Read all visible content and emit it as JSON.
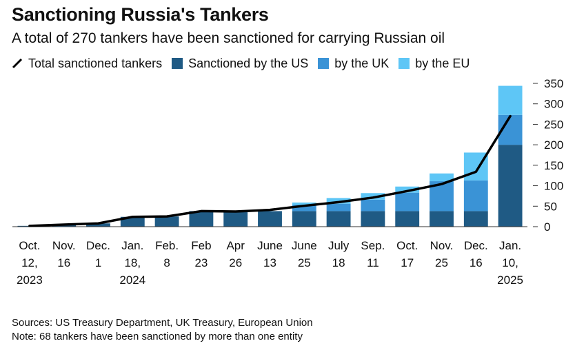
{
  "header": {
    "title": "Sanctioning Russia's Tankers",
    "subtitle": "A total of 270 tankers have been sanctioned for carrying Russian oil"
  },
  "legend": {
    "total": "Total sanctioned tankers",
    "us": "Sanctioned by the US",
    "uk": "by the UK",
    "eu": "by the EU"
  },
  "colors": {
    "us": "#1f5a84",
    "uk": "#3a93d6",
    "eu": "#5ec6f6",
    "line": "#000000",
    "axis": "#333333"
  },
  "chart_data": {
    "type": "bar",
    "stacked": true,
    "title": "Sanctioning Russia's Tankers",
    "categories": [
      [
        "Oct.",
        "12,",
        "2023"
      ],
      [
        "Nov.",
        "16"
      ],
      [
        "Dec.",
        "1"
      ],
      [
        "Jan.",
        "18,",
        "2024"
      ],
      [
        "Feb.",
        "8"
      ],
      [
        "Feb",
        "23"
      ],
      [
        "Apr",
        "26"
      ],
      [
        "June",
        "13"
      ],
      [
        "June",
        "25"
      ],
      [
        "July",
        "18"
      ],
      [
        "Sep.",
        "11"
      ],
      [
        "Oct.",
        "17"
      ],
      [
        "Nov.",
        "25"
      ],
      [
        "Dec.",
        "16"
      ],
      [
        "Jan.",
        "10,",
        "2025"
      ]
    ],
    "series": [
      {
        "name": "Sanctioned by the US",
        "values": [
          2,
          5,
          8,
          24,
          25,
          38,
          38,
          38,
          38,
          38,
          38,
          38,
          38,
          38,
          200
        ]
      },
      {
        "name": "by the UK",
        "values": [
          0,
          0,
          0,
          0,
          0,
          0,
          0,
          0,
          15,
          18,
          28,
          45,
          73,
          75,
          73
        ]
      },
      {
        "name": "by the EU",
        "values": [
          0,
          0,
          0,
          0,
          0,
          0,
          0,
          0,
          6,
          14,
          16,
          15,
          19,
          68,
          71
        ]
      }
    ],
    "line": {
      "name": "Total sanctioned tankers",
      "values": [
        2,
        5,
        8,
        24,
        25,
        38,
        37,
        41,
        51,
        60,
        71,
        87,
        104,
        134,
        270
      ]
    },
    "ylim": [
      0,
      350
    ],
    "yticks": [
      0,
      50,
      100,
      150,
      200,
      250,
      300,
      350
    ],
    "y_axis_position": "right"
  },
  "footer": {
    "sources": "Sources: US Treasury Department, UK Treasury, European Union",
    "note": "Note: 68 tankers have been sanctioned by more than one entity"
  }
}
